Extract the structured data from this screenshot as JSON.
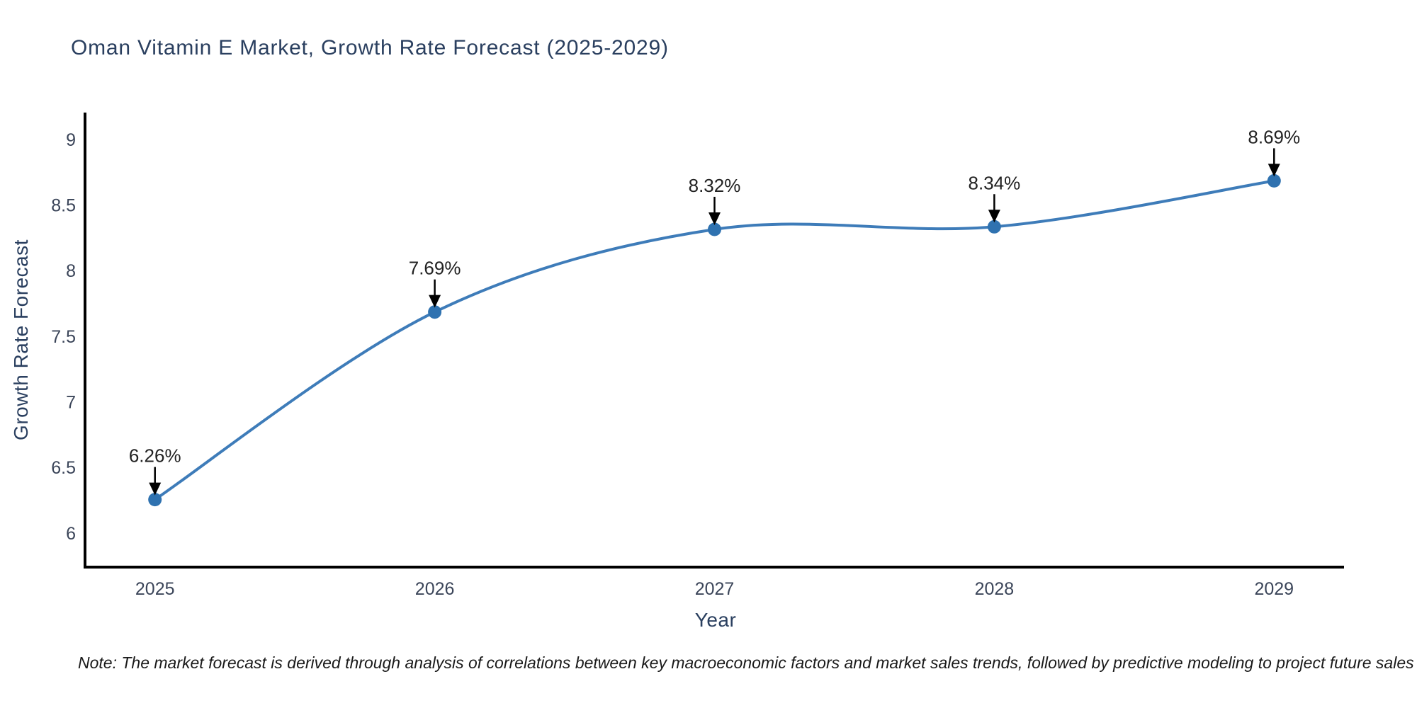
{
  "figure": {
    "title": "Oman Vitamin E Market, Growth Rate Forecast (2025-2029)",
    "x_axis_title": "Year",
    "y_axis_title": "Growth Rate Forecast",
    "footnote": "Note: The market forecast is derived through analysis of correlations between key macroeconomic factors and market sales trends, followed by predictive modeling to project future sales"
  },
  "chart_data": {
    "type": "line",
    "title": "Oman Vitamin E Market, Growth Rate Forecast (2025-2029)",
    "xlabel": "Year",
    "ylabel": "Growth Rate Forecast",
    "x": [
      2025,
      2026,
      2027,
      2028,
      2029
    ],
    "values": [
      6.26,
      7.69,
      8.32,
      8.34,
      8.69
    ],
    "point_labels": [
      "6.26%",
      "7.69%",
      "8.32%",
      "8.34%",
      "8.69%"
    ],
    "x_tick_labels": [
      "2025",
      "2026",
      "2027",
      "2028",
      "2029"
    ],
    "y_tick_values": [
      6,
      6.5,
      7,
      7.5,
      8,
      8.5,
      9
    ],
    "y_tick_labels": [
      "6",
      "6.5",
      "7",
      "7.5",
      "8",
      "8.5",
      "9"
    ],
    "xlim": [
      2024.75,
      2029.25
    ],
    "ylim": [
      5.745,
      9.205
    ],
    "grid": false,
    "legend": "none",
    "smooth": true,
    "annotations_have_arrows": true
  },
  "colors": {
    "background": "#ffffff",
    "line": "#3e7cb9",
    "marker": "#2f72b0",
    "axis_line": "#000000",
    "title_text": "#2a3f5f",
    "axis_title_text": "#2a3f5f",
    "tick_text": "#3b4559",
    "annotation_text": "#222222",
    "annotation_arrow": "#000000",
    "footnote_text": "#1a1a1a"
  }
}
